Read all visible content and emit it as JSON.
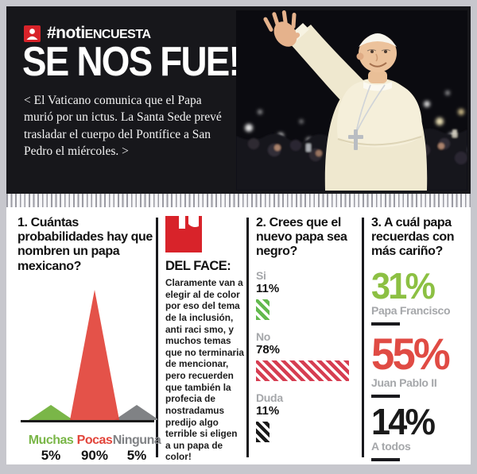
{
  "page": {
    "frame_bg": "#ffffff",
    "border_color": "#c7c7cd"
  },
  "header": {
    "bg_color": "#17171b",
    "brand": {
      "icon": "user-icon",
      "hashtag": "#noti",
      "suffix": "ENCUESTA",
      "icon_color": "#d8232a"
    },
    "headline": "SE NOS FUE!",
    "lede": "< El Vaticano comunica que el Papa murió por un ictus. La Santa Sede prevé trasladar el cuerpo del Pontífice a San Pedro el miércoles. >"
  },
  "del_face": {
    "icon": "quote-icon",
    "icon_color": "#d8232a",
    "heading": "DEL FACE:",
    "body": "Claramente van a elegir al de color por eso del tema de la inclusión, anti raci smo, y muchos temas que no terminaria de mencionar, pero recuerden que también la profecia de nostradamus predijo algo terrible si eligen a un papa de color!"
  },
  "chart_data": [
    {
      "type": "area",
      "title": "1. Cuántas probabilidades hay que nombren un papa mexicano?",
      "categories": [
        "Muchas",
        "Pocas",
        "Ninguna"
      ],
      "values": [
        5,
        90,
        5
      ],
      "value_labels": [
        "5%",
        "90%",
        "5%"
      ],
      "colors": [
        "#7ab648",
        "#e2453b",
        "#808285"
      ],
      "ylim": [
        0,
        90
      ],
      "legend": "none",
      "grid": false
    },
    {
      "type": "bar",
      "title": "2. Crees que el nuevo papa sea negro?",
      "categories": [
        "Si",
        "No",
        "Duda"
      ],
      "values": [
        11,
        78,
        11
      ],
      "value_labels": [
        "11%",
        "78%",
        "11%"
      ],
      "colors": [
        "#63b94e",
        "#d63e52",
        "#1a1a1a"
      ],
      "style": "diagonal-striped",
      "orientation": "horizontal",
      "xlim": [
        0,
        80
      ],
      "grid": false
    },
    {
      "type": "table",
      "title": "3. A cuál papa recuerdas con más cariño?",
      "categories": [
        "Papa Francisco",
        "Juan Pablo II",
        "A todos"
      ],
      "values": [
        31,
        55,
        14
      ],
      "value_labels": [
        "31%",
        "55%",
        "14%"
      ],
      "colors": [
        "#8cc043",
        "#e04b44",
        "#1a1a1a"
      ]
    }
  ]
}
